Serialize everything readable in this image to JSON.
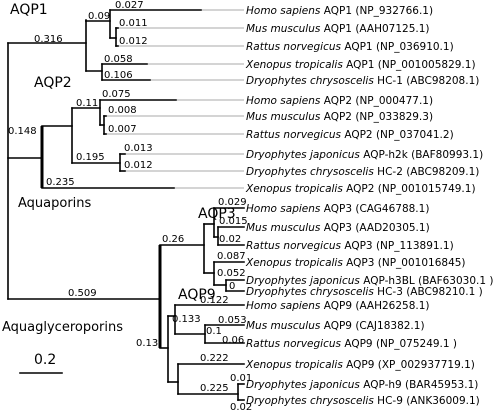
{
  "groups": {
    "aqp1": "AQP1",
    "aqp2": "AQP2",
    "aqp3": "AQP3",
    "aqp9": "AQP9",
    "aquaporins": "Aquaporins",
    "aquaglyceroporins": "Aquaglyceroporins"
  },
  "scale_label": "0.2",
  "branch_labels": {
    "root_aquaporins": "0.316",
    "root_aquaglyceroporins": "0.509",
    "aqp1_sub": "0.09",
    "aqp1_hs": "0.027",
    "aqp1_mm": "0.011",
    "aqp1_rn": "0.012",
    "aqp1_xt": "0.058",
    "aqp1_dc": "0.106",
    "aqp2_clade": "0.148",
    "aqp2_sub": "0.11",
    "aqp2_hs": "0.075",
    "aqp2_mm": "0.008",
    "aqp2_rn": "0.007",
    "aqp2_frog": "0.195",
    "aqp2_dj": "0.013",
    "aqp2_dc": "0.012",
    "aqp2_xt": "0.235",
    "aqp3_clade": "0.26",
    "aqp3_hs": "0.029",
    "aqp3_mm": "0.015",
    "aqp3_rn": "0.02",
    "aqp3_xt": "0.087",
    "aqp3_frog": "0.052",
    "aqp3_dj": "0",
    "aqp9_clade": "0.13",
    "aqp9_sub": "0.133",
    "aqp9_hs": "0.122",
    "aqp9_mm": "0.053",
    "aqp9_murine": "0.1",
    "aqp9_rn": "0.06",
    "aqp9_xt": "0.222",
    "aqp9_frog": "0.225",
    "aqp9_dj": "0.01",
    "aqp9_dc": "0.02"
  },
  "leaves": [
    {
      "species": "Homo sapiens",
      "label": "AQP1 (NP_932766.1)"
    },
    {
      "species": "Mus musculus",
      "label": "AQP1 (AAH07125.1)"
    },
    {
      "species": "Rattus norvegicus",
      "label": "AQP1 (NP_036910.1)"
    },
    {
      "species": "Xenopus tropicalis",
      "label": "AQP1 (NP_001005829.1)"
    },
    {
      "species": "Dryophytes chrysoscelis",
      "label": "HC-1 (ABC98208.1)"
    },
    {
      "species": "Homo sapiens",
      "label": "AQP2 (NP_000477.1)"
    },
    {
      "species": "Mus musculus",
      "label": "AQP2 (NP_033829.3)"
    },
    {
      "species": "Rattus norvegicus",
      "label": "AQP2 (NP_037041.2)"
    },
    {
      "species": "Dryophytes japonicus",
      "label": "AQP-h2k (BAF80993.1)"
    },
    {
      "species": "Dryophytes chrysoscelis",
      "label": "HC-2 (ABC98209.1)"
    },
    {
      "species": "Xenopus tropicalis",
      "label": "AQP2 (NP_001015749.1)"
    },
    {
      "species": "Homo sapiens",
      "label": "AQP3 (CAG46788.1)"
    },
    {
      "species": "Mus musculus",
      "label": "AQP3 (AAD20305.1)"
    },
    {
      "species": "Rattus norvegicus",
      "label": "AQP3 (NP_113891.1)"
    },
    {
      "species": "Xenopus tropicalis",
      "label": "AQP3 (NP_001016845)"
    },
    {
      "species": "Dryophytes japonicus",
      "label": "AQP-h3BL (BAF63030.1 )"
    },
    {
      "species": "Dryophytes chrysoscelis",
      "label": "HC-3 (ABC98210.1 )"
    },
    {
      "species": "Homo sapiens",
      "label": "AQP9 (AAH26258.1)"
    },
    {
      "species": "Mus musculus",
      "label": "AQP9 (CAJ18382.1)"
    },
    {
      "species": "Rattus norvegicus",
      "label": "AQP9 (NP_075249.1 )"
    },
    {
      "species": "Xenopus tropicalis",
      "label": "AQP9 (XP_002937719.1)"
    },
    {
      "species": "Dryophytes japonicus",
      "label": "AQP-h9 (BAR45953.1)"
    },
    {
      "species": "Dryophytes chrysoscelis",
      "label": "HC-9 (ANK36009.1)"
    }
  ]
}
